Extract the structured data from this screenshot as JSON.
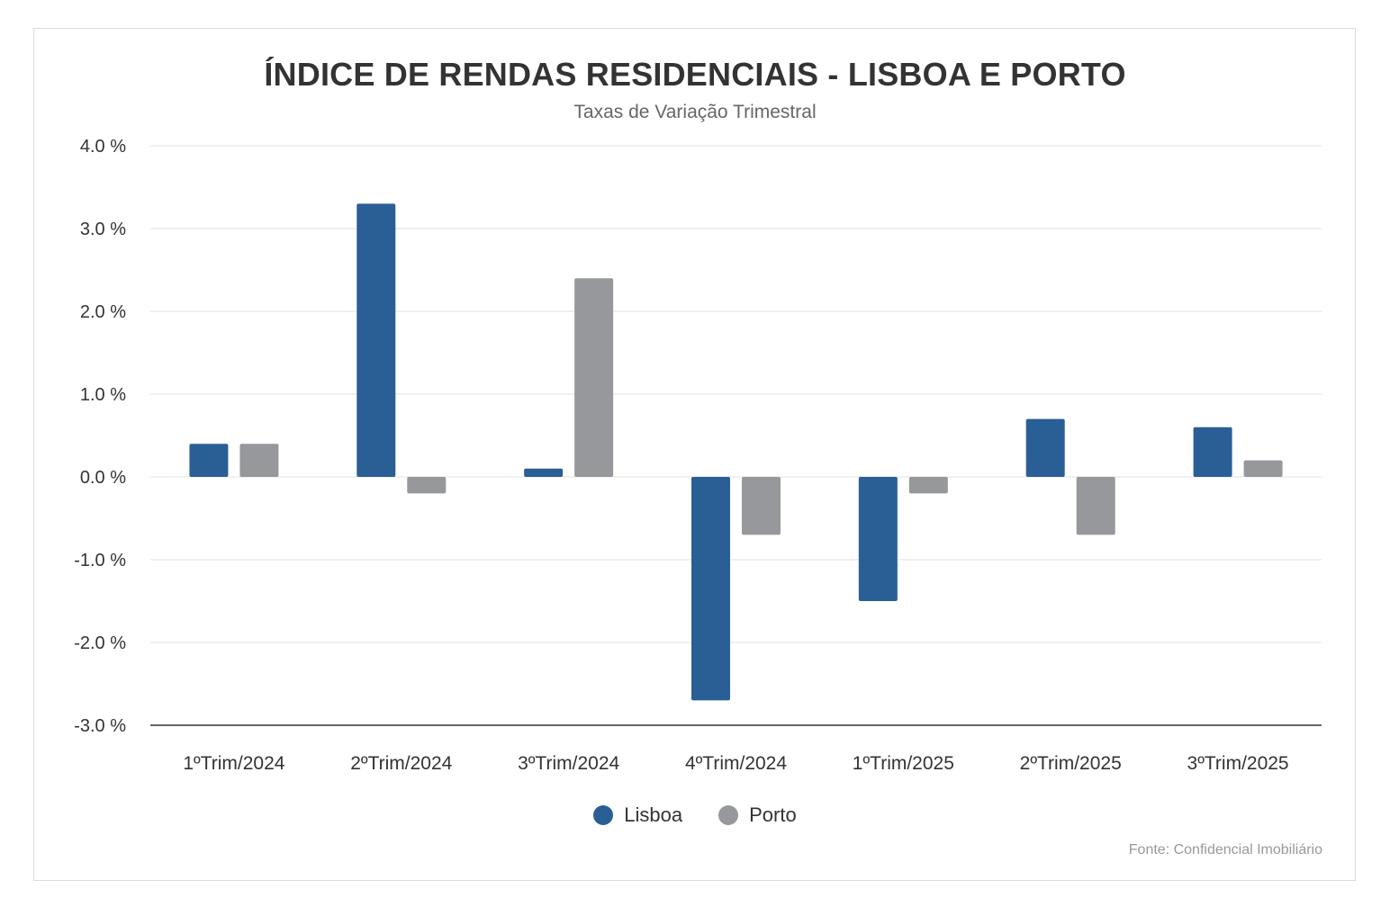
{
  "chart_data": {
    "type": "bar",
    "title": "ÍNDICE DE RENDAS RESIDENCIAIS - LISBOA E PORTO",
    "subtitle": "Taxas de Variação Trimestral",
    "categories": [
      "1ºTrim/2024",
      "2ºTrim/2024",
      "3ºTrim/2024",
      "4ºTrim/2024",
      "1ºTrim/2025",
      "2ºTrim/2025",
      "3ºTrim/2025"
    ],
    "series": [
      {
        "name": "Lisboa",
        "color": "#2a5f96",
        "values": [
          0.4,
          3.3,
          0.1,
          -2.7,
          -1.5,
          0.7,
          0.6
        ]
      },
      {
        "name": "Porto",
        "color": "#97989b",
        "values": [
          0.4,
          -0.2,
          2.4,
          -0.7,
          -0.2,
          -0.7,
          0.2
        ]
      }
    ],
    "yticks": [
      4.0,
      3.0,
      2.0,
      1.0,
      0.0,
      -1.0,
      -2.0,
      -3.0
    ],
    "ytick_labels": [
      "4.0 %",
      "3.0 %",
      "2.0 %",
      "1.0 %",
      "0.0 %",
      "-1.0 %",
      "-2.0 %",
      "-3.0 %"
    ],
    "ylim": [
      -3.0,
      4.0
    ],
    "xlabel": "",
    "ylabel": "",
    "grid": true,
    "legend_position": "bottom-center",
    "source": "Fonte: Confidencial Imobiliário"
  }
}
